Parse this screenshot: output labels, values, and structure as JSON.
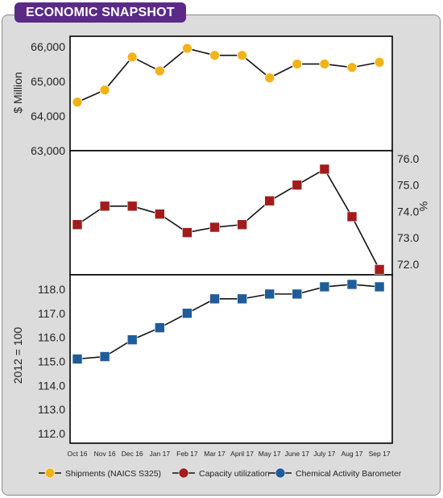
{
  "header": {
    "badge": "ECONOMIC SNAPSHOT"
  },
  "colors": {
    "badge_bg": "#5b2a86",
    "shipments": "#f2b318",
    "capacity": "#a31c1c",
    "cab": "#1f5c99",
    "line": "#111111"
  },
  "chart_data": [
    {
      "type": "line",
      "ylabel": "$ Million",
      "ylim": [
        63000,
        66300
      ],
      "yticks": [
        63000,
        64000,
        65000,
        66000
      ],
      "ytick_labels": [
        "63,000",
        "64,000",
        "65,000",
        "66,000"
      ],
      "marker": "circle",
      "series": [
        {
          "name": "Shipments (NAICS S325)",
          "values": [
            64400,
            64750,
            65700,
            65300,
            65950,
            65750,
            65750,
            65100,
            65500,
            65500,
            65400,
            65550
          ]
        }
      ]
    },
    {
      "type": "line",
      "ylabel": "%",
      "ylim": [
        71.6,
        76.3
      ],
      "yticks": [
        72.0,
        73.0,
        74.0,
        75.0,
        76.0
      ],
      "ytick_labels": [
        "72.0",
        "73.0",
        "74.0",
        "75.0",
        "76.0"
      ],
      "y_axis_side": "right",
      "marker": "square",
      "series": [
        {
          "name": "Capacity utilization",
          "values": [
            73.5,
            74.2,
            74.2,
            73.9,
            73.2,
            73.4,
            73.5,
            74.4,
            75.0,
            75.6,
            73.8,
            71.8
          ]
        }
      ]
    },
    {
      "type": "line",
      "ylabel": "2012 = 100",
      "ylim": [
        111.6,
        118.6
      ],
      "yticks": [
        112.0,
        113.0,
        114.0,
        115.0,
        116.0,
        117.0,
        118.0
      ],
      "ytick_labels": [
        "112.0",
        "113.0",
        "114.0",
        "115.0",
        "116.0",
        "117.0",
        "118.0"
      ],
      "marker": "square",
      "categories": [
        "Oct 16",
        "Nov 16",
        "Dec 16",
        "Jan 17",
        "Feb 17",
        "Mar 17",
        "April 17",
        "May 17",
        "June 17",
        "July 17",
        "Aug 17",
        "Sep 17"
      ],
      "series": [
        {
          "name": "Chemical Activity Barometer",
          "values": [
            115.1,
            115.2,
            115.9,
            116.4,
            117.0,
            117.6,
            117.6,
            117.8,
            117.8,
            118.1,
            118.2,
            118.1
          ]
        }
      ]
    }
  ],
  "legend": {
    "position": "bottom",
    "items": [
      {
        "label": "Shipments (NAICS S325)",
        "marker": "circle",
        "color": "#f2b318"
      },
      {
        "label": "Capacity utilization",
        "marker": "circle",
        "color": "#a31c1c"
      },
      {
        "label": "Chemical Activity Barometer",
        "marker": "circle",
        "color": "#1f5c99"
      }
    ]
  }
}
